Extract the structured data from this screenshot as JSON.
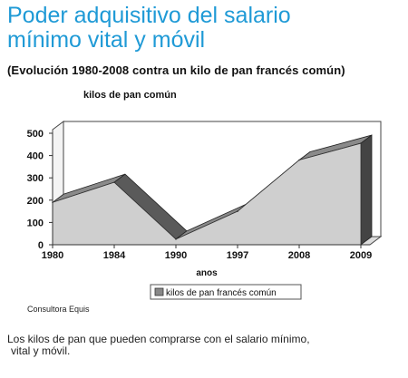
{
  "header": {
    "title_line1": "Poder adquisitivo del salario",
    "title_line2": "mínimo vital y móvil",
    "subtitle": "(Evolución 1980-2008 contra un kilo de pan francés común)"
  },
  "chart_data": {
    "type": "area",
    "ylabel": "kilos de pan común",
    "xlabel": "anos",
    "categories": [
      "1980",
      "1984",
      "1990",
      "1997",
      "2008",
      "2009"
    ],
    "yticks": [
      "0",
      "100",
      "200",
      "300",
      "400",
      "500"
    ],
    "ylim": [
      0,
      500
    ],
    "grid": true,
    "legend_position": "bottom",
    "series": [
      {
        "name": "kilos de pan francés común",
        "values": [
          190,
          280,
          25,
          150,
          380,
          455
        ]
      }
    ],
    "colors": {
      "front": "#cfcfcf",
      "top": "#777777",
      "side": "#444444",
      "grid": "#e6e6e6"
    }
  },
  "source": "Consultora Equis",
  "caption": {
    "line1": "Los kilos de pan que pueden comprarse con el salario mínimo,",
    "line2": "vital y móvil."
  }
}
